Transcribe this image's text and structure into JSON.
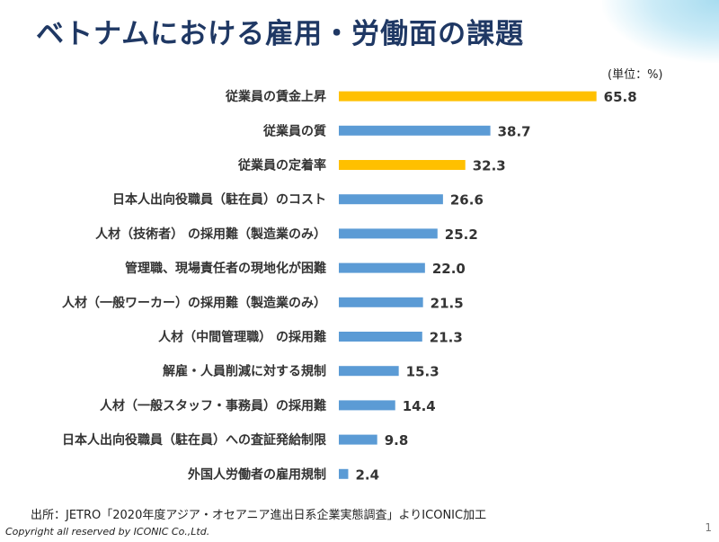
{
  "page": {
    "title": "ベトナムにおける雇用・労働面の課題",
    "unit": "(単位：%)",
    "source": "出所：JETRO「2020年度アジア・オセアニア進出日系企業実態調査」よりICONIC加工",
    "copyright": "Copyright all reserved by ICONIC Co.,Ltd.",
    "page_number": "1"
  },
  "colors": {
    "highlight": "#FFC000",
    "default": "#5B9BD5",
    "title": "#1F3864"
  },
  "chart_data": {
    "type": "bar",
    "orientation": "horizontal",
    "title": "",
    "xlabel": "",
    "ylabel": "",
    "categories": [
      "従業員の賃金上昇",
      "従業員の質",
      "従業員の定着率",
      "日本人出向役職員（駐在員）のコスト",
      "人材（技術者） の採用難（製造業のみ）",
      "管理職、現場責任者の現地化が困難",
      "人材（一般ワーカー）の採用難（製造業のみ）",
      "人材（中間管理職） の採用難",
      "解雇・人員削減に対する規制",
      "人材（一般スタッフ・事務員）の採用難",
      "日本人出向役職員（駐在員）への査証発給制限",
      "外国人労働者の雇用規制"
    ],
    "values": [
      65.8,
      38.7,
      32.3,
      26.6,
      25.2,
      22.0,
      21.5,
      21.3,
      15.3,
      14.4,
      9.8,
      2.4
    ],
    "value_labels": [
      "65.8",
      "38.7",
      "32.3",
      "26.6",
      "25.2",
      "22.0",
      "21.5",
      "21.3",
      "15.3",
      "14.4",
      "9.8",
      "2.4"
    ],
    "highlighted": [
      true,
      false,
      true,
      false,
      false,
      false,
      false,
      false,
      false,
      false,
      false,
      false
    ],
    "xlim": [
      0,
      70
    ],
    "grid": false,
    "legend": "none"
  }
}
